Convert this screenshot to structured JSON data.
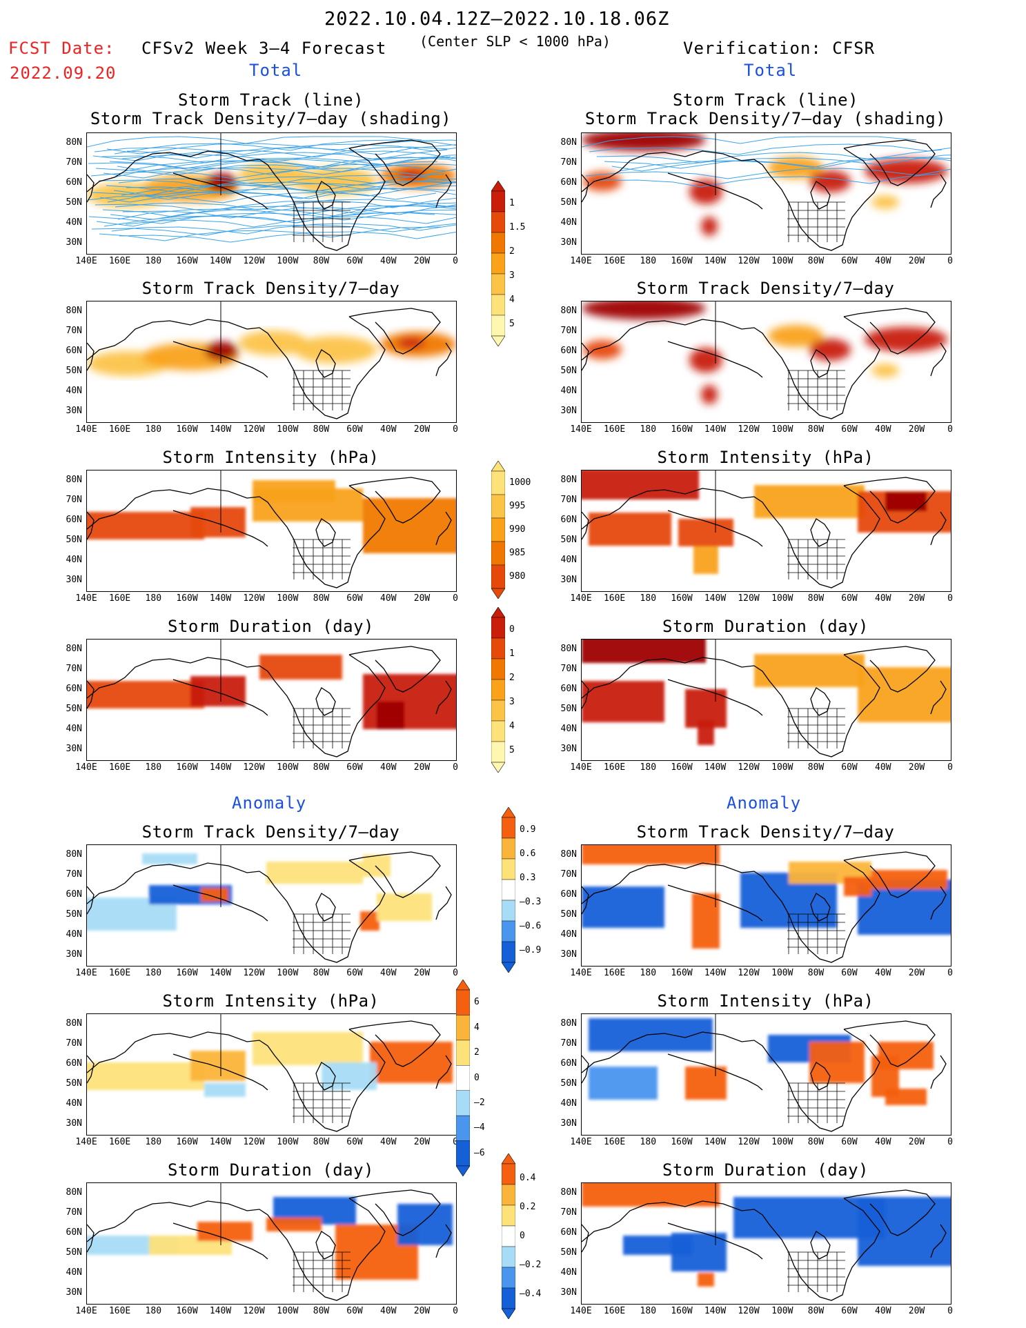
{
  "header": {
    "period": "2022.10.04.12Z–2022.10.18.06Z",
    "fcst_label": "FCST Date:",
    "fcst_date": "2022.09.20",
    "model": "CFSv2 Week 3–4 Forecast",
    "criterion": "(Center SLP < 1000 hPa)",
    "verification": "Verification: CFSR",
    "total_left": "Total",
    "total_right": "Total",
    "anomaly_left": "Anomaly",
    "anomaly_right": "Anomaly"
  },
  "panel_titles": {
    "track_line": "Storm Track (line)",
    "track_density_shading": "Storm Track Density/7–day (shading)",
    "track_density": "Storm Track Density/7–day",
    "intensity": "Storm Intensity (hPa)",
    "duration": "Storm Duration (day)"
  },
  "axes": {
    "lat_labels": [
      "80N",
      "70N",
      "60N",
      "50N",
      "40N",
      "30N"
    ],
    "lon_labels": [
      "140E",
      "160E",
      "180",
      "160W",
      "140W",
      "120W",
      "100W",
      "80W",
      "60W",
      "40W",
      "20W",
      "0"
    ]
  },
  "colorbars": {
    "density_total": [
      "1",
      "1.5",
      "2",
      "3",
      "4",
      "5"
    ],
    "intensity_total": [
      "1000",
      "995",
      "990",
      "985",
      "980"
    ],
    "duration_total": [
      "0",
      "1",
      "2",
      "3",
      "4",
      "5"
    ],
    "density_anom": [
      "0.9",
      "0.6",
      "0.3",
      "–0.3",
      "–0.6",
      "–0.9"
    ],
    "intensity_anom": [
      "6",
      "4",
      "2",
      "0",
      "–2",
      "–4",
      "–6"
    ],
    "duration_anom": [
      "0.4",
      "0.2",
      "0",
      "–0.2",
      "–0.4"
    ]
  },
  "colors": {
    "total_scale": [
      "#fff7b0",
      "#fde27a",
      "#fcc349",
      "#f9a21a",
      "#f07800",
      "#e64a0a",
      "#c81e0a",
      "#9e0000"
    ],
    "anom_scale": [
      "#1560d8",
      "#4a95ee",
      "#a6dcf5",
      "#ffffff",
      "#fde27a",
      "#fbb43a",
      "#f46010"
    ],
    "track_line": "#3aa3ea",
    "header_red": "#ee2222",
    "header_blue": "#1a4fe0"
  }
}
